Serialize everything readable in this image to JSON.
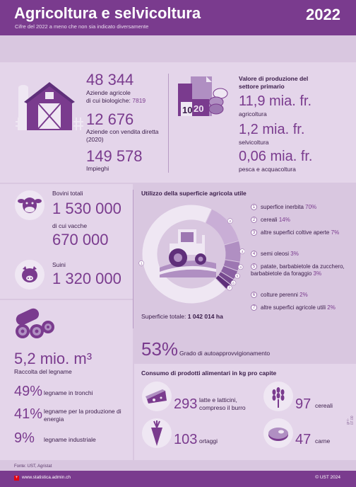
{
  "header": {
    "title": "Agricoltura e selvicoltura",
    "subtitle": "Cifre del 2022 a meno che non sia indicato diversamente",
    "year": "2022"
  },
  "farms": {
    "count": "48 344",
    "label_prefix": "Aziende agricole",
    "organic_label": "di cui biologiche:",
    "organic_value": "7819",
    "direct_sale_count": "12 676",
    "direct_sale_label": "Aziende con vendita diretta (2020)",
    "jobs_count": "149 578",
    "jobs_label": "Impieghi"
  },
  "production": {
    "heading": "Valore di produzione del settore primario",
    "items": [
      {
        "value": "11,9 mia. fr.",
        "label": "agricoltura"
      },
      {
        "value": "1,2 mia. fr.",
        "label": "selvicoltura"
      },
      {
        "value": "0,06 mia. fr.",
        "label": "pesca e acquacoltura"
      }
    ],
    "icon_numbers": [
      "10",
      "20"
    ]
  },
  "livestock": {
    "cattle_label": "Bovini totali",
    "cattle_value": "1 530 000",
    "cows_label": "di cui vacche",
    "cows_value": "670 000",
    "pigs_label": "Suini",
    "pigs_value": "1 320 000"
  },
  "land_use": {
    "heading": "Utilizzo della superficie agricola utile",
    "total_label": "Superficie totale:",
    "total_value": "1 042 014 ha",
    "colors": [
      "#efe7f3",
      "#c9aed6",
      "#b08fc2",
      "#9d77b2",
      "#8a60a2",
      "#76498f",
      "#5f2f7a"
    ]
  },
  "chart_data": {
    "type": "pie",
    "title": "Utilizzo della superficie agricola utile",
    "categories": [
      "superfice inerbita",
      "cereali",
      "altre superfici coltive aperte",
      "semi oleosi",
      "patate, barbabietole da zucchero, barbabietole da foraggio",
      "colture perenni",
      "altre superfici agricole utili"
    ],
    "numbers": [
      "1",
      "2",
      "3",
      "4",
      "5",
      "6",
      "7"
    ],
    "values": [
      70,
      14,
      7,
      3,
      3,
      2,
      2
    ],
    "value_labels": [
      "70%",
      "14%",
      "7%",
      "3%",
      "3%",
      "2%",
      "2%"
    ]
  },
  "wood": {
    "harvest_value": "5,2 mio. m³",
    "harvest_label": "Raccolta del legname",
    "items": [
      {
        "pct": "49%",
        "label": "legname in tronchi"
      },
      {
        "pct": "41%",
        "label": "legname per la produzione di energia"
      },
      {
        "pct": "9%",
        "label": "legname industriale"
      }
    ]
  },
  "self_supply": {
    "pct": "53%",
    "label": "Grado di autoapprovvigionamento"
  },
  "consumption": {
    "heading": "Consumo di prodotti alimentari in kg pro capite",
    "items": [
      {
        "value": "293",
        "label": "latte e latticini, compreso il burro"
      },
      {
        "value": "97",
        "label": "cereali"
      },
      {
        "value": "103",
        "label": "ortaggi"
      },
      {
        "value": "47",
        "label": "carne"
      }
    ]
  },
  "footer": {
    "source": "Fonte: UST, Agristat",
    "website": "www.statistica.admin.ch",
    "copyright": "© UST 2024",
    "side_code": "gr-i-07.00"
  }
}
